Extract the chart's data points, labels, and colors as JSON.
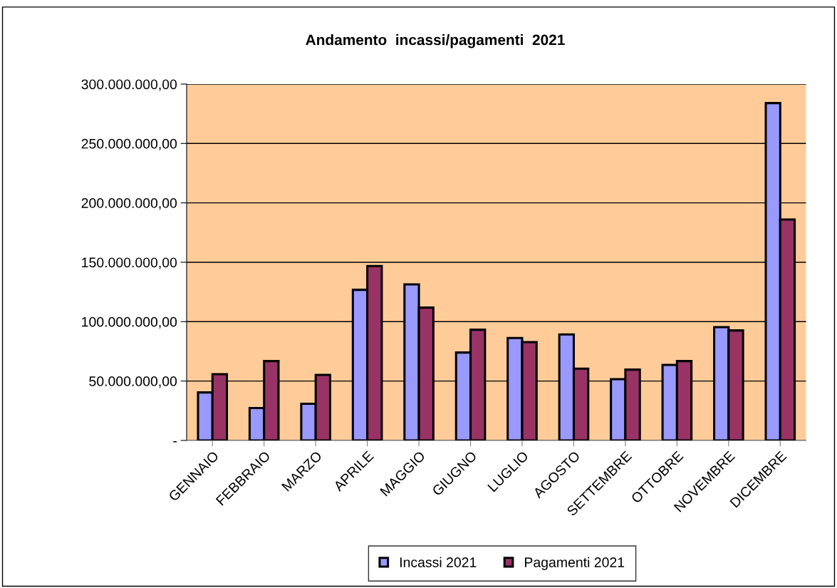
{
  "chart_data": {
    "type": "bar",
    "title": "Andamento  incassi/pagamenti  2021",
    "categories": [
      "GENNAIO",
      "FEBBRAIO",
      "MARZO",
      "APRILE",
      "MAGGIO",
      "GIUGNO",
      "LUGLIO",
      "AGOSTO",
      "SETTEMBRE",
      "OTTOBRE",
      "NOVEMBRE",
      "DICEMBRE"
    ],
    "series": [
      {
        "name": "Incassi 2021",
        "color": "#9999ff",
        "values": [
          40400000,
          27200000,
          30800000,
          126800000,
          131400000,
          74000000,
          86200000,
          89200000,
          51600000,
          63600000,
          95400000,
          284000000
        ]
      },
      {
        "name": "Pagamenti 2021",
        "color": "#993366",
        "values": [
          55800000,
          66800000,
          55200000,
          146800000,
          111800000,
          93200000,
          82800000,
          60400000,
          59600000,
          66800000,
          92600000,
          186000000
        ]
      }
    ],
    "ylim": [
      0,
      300000000
    ],
    "yticks": [
      {
        "value": 0,
        "label": "-"
      },
      {
        "value": 50000000,
        "label": "50.000.000,00"
      },
      {
        "value": 100000000,
        "label": "100.000.000,00"
      },
      {
        "value": 150000000,
        "label": "150.000.000,00"
      },
      {
        "value": 200000000,
        "label": "200.000.000,00"
      },
      {
        "value": 250000000,
        "label": "250.000.000,00"
      },
      {
        "value": 300000000,
        "label": "300.000.000,00"
      }
    ],
    "grid": "y",
    "legend": "bottom"
  }
}
